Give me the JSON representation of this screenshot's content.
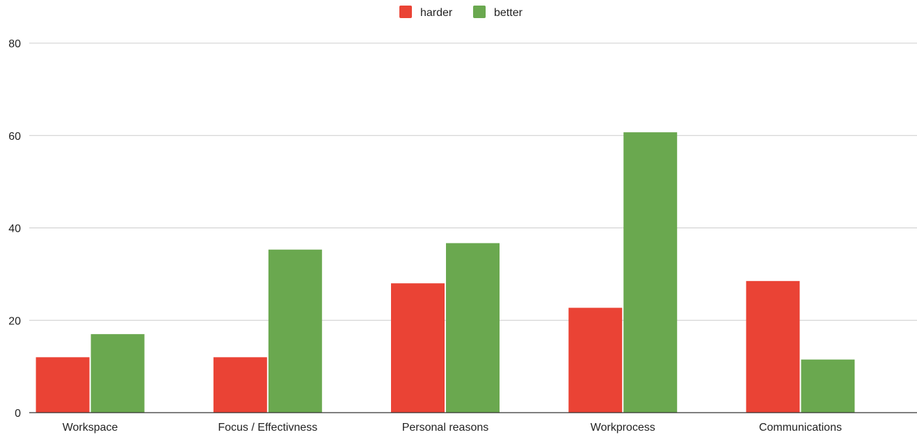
{
  "chart_data": {
    "type": "bar",
    "categories": [
      "Workspace",
      "Focus / Effectivness",
      "Personal reasons",
      "Workprocess",
      "Communications"
    ],
    "series": [
      {
        "name": "harder",
        "color": "#ea4335",
        "values": [
          12,
          12,
          28,
          22.7,
          28.5
        ]
      },
      {
        "name": "better",
        "color": "#6aa84f",
        "values": [
          17,
          35.3,
          36.7,
          60.7,
          11.5
        ]
      }
    ],
    "title": "",
    "xlabel": "",
    "ylabel": "",
    "ylim": [
      0,
      80
    ],
    "yticks": [
      "0",
      "20",
      "40",
      "60",
      "80"
    ],
    "grid": true,
    "legend_position": "top-center",
    "colors": {
      "gridline": "#cccccc",
      "axis": "#333333",
      "text": "#222222"
    }
  }
}
